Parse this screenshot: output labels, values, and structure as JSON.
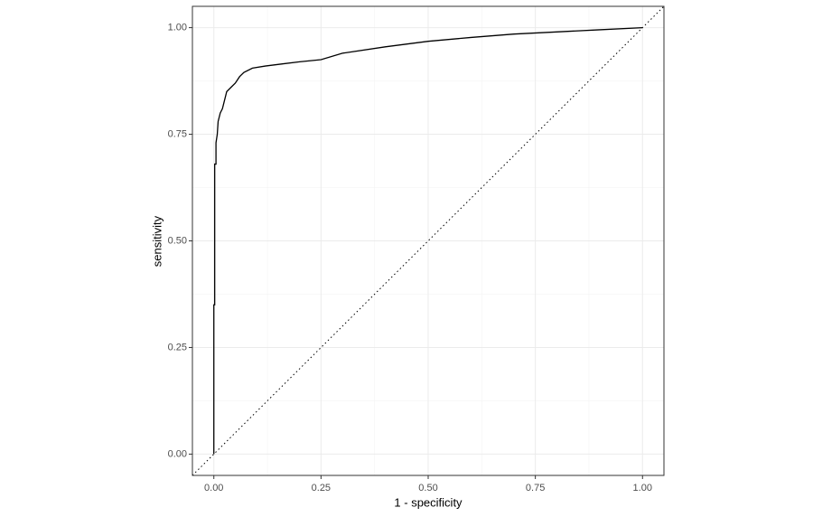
{
  "chart_data": {
    "type": "line",
    "x_label": "1 - specificity",
    "y_label": "sensitivity",
    "x": [
      0,
      0,
      0.002,
      0.002,
      0.005,
      0.005,
      0.008,
      0.01,
      0.015,
      0.02,
      0.025,
      0.03,
      0.04,
      0.05,
      0.06,
      0.07,
      0.09,
      0.12,
      0.16,
      0.2,
      0.25,
      0.3,
      0.4,
      0.5,
      0.6,
      0.7,
      0.8,
      0.9,
      1.0
    ],
    "values": [
      0,
      0.35,
      0.35,
      0.68,
      0.68,
      0.73,
      0.75,
      0.78,
      0.8,
      0.81,
      0.83,
      0.85,
      0.86,
      0.87,
      0.885,
      0.895,
      0.905,
      0.91,
      0.915,
      0.92,
      0.925,
      0.94,
      0.955,
      0.968,
      0.977,
      0.985,
      0.99,
      0.995,
      1.0
    ],
    "color": "#000000",
    "xlim": [
      -0.05,
      1.05
    ],
    "ylim": [
      -0.05,
      1.05
    ],
    "xticks": [
      {
        "value": 0,
        "label": "0.00"
      },
      {
        "value": 0.25,
        "label": "0.25"
      },
      {
        "value": 0.5,
        "label": "0.50"
      },
      {
        "value": 0.75,
        "label": "0.75"
      },
      {
        "value": 1,
        "label": "1.00"
      }
    ],
    "yticks": [
      {
        "value": 0,
        "label": "0.00"
      },
      {
        "value": 0.25,
        "label": "0.25"
      },
      {
        "value": 0.5,
        "label": "0.50"
      },
      {
        "value": 0.75,
        "label": "0.75"
      },
      {
        "value": 1,
        "label": "1.00"
      }
    ],
    "xminor": [
      0.125,
      0.375,
      0.625,
      0.875
    ],
    "yminor": [
      0.125,
      0.375,
      0.625,
      0.875
    ],
    "grid": true
  }
}
